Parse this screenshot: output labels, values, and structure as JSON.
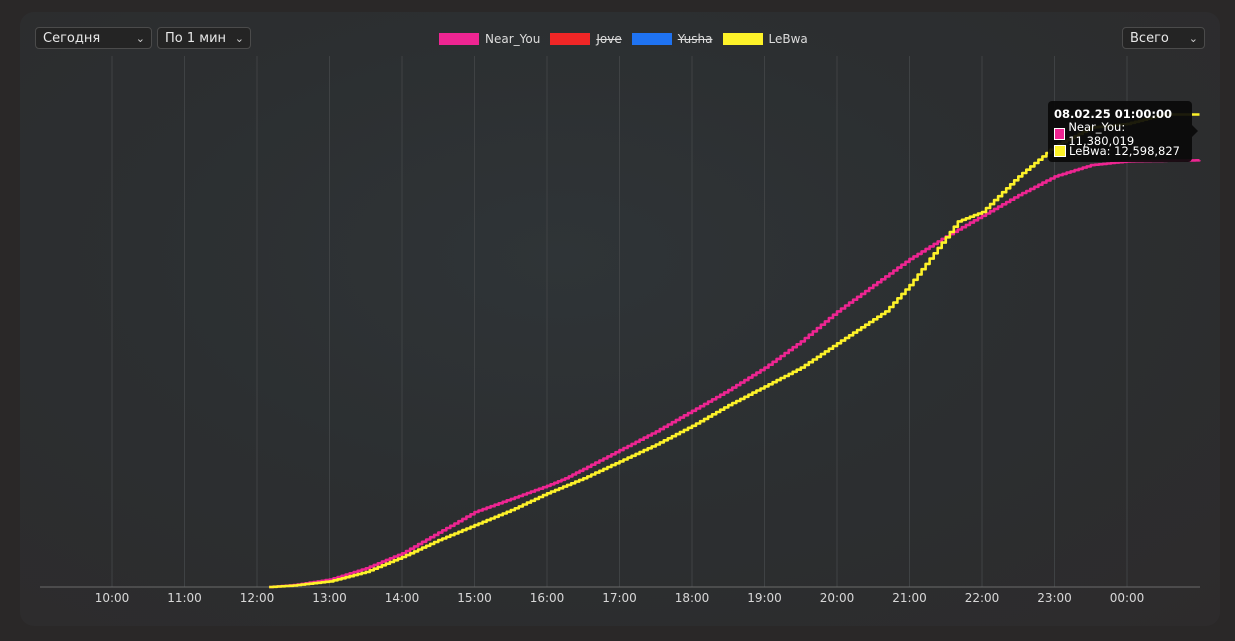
{
  "controls": {
    "period": "Сегодня",
    "interval": "По 1 мин",
    "range": "Всего"
  },
  "colors": {
    "Near_You": "#ee2592",
    "Jove": "#f02626",
    "Yusha": "#1f73f2",
    "LeBwa": "#fdf229"
  },
  "legend": [
    {
      "name": "Near_You",
      "color": "#ee2592",
      "hidden": false
    },
    {
      "name": "Jove",
      "color": "#f02626",
      "hidden": true
    },
    {
      "name": "Yusha",
      "color": "#1f73f2",
      "hidden": true
    },
    {
      "name": "LeBwa",
      "color": "#fdf229",
      "hidden": false
    }
  ],
  "tooltip": {
    "title": "08.02.25 01:00:00",
    "rows": [
      {
        "label": "Near_You: 11,380,019",
        "color": "#ee2592"
      },
      {
        "label": "LeBwa: 12,598,827",
        "color": "#fdf229"
      }
    ]
  },
  "chart_data": {
    "type": "line",
    "x_ticks": [
      "10:00",
      "11:00",
      "12:00",
      "13:00",
      "14:00",
      "15:00",
      "16:00",
      "17:00",
      "18:00",
      "19:00",
      "20:00",
      "21:00",
      "22:00",
      "23:00",
      "00:00"
    ],
    "xlim": [
      "09:00",
      "01:00"
    ],
    "ylim": [
      0,
      12800000
    ],
    "grid": "vertical",
    "legend_position": "top-center",
    "series": [
      {
        "name": "Near_You",
        "points": [
          [
            "12:10",
            0
          ],
          [
            "12:30",
            50000
          ],
          [
            "13:00",
            200000
          ],
          [
            "13:30",
            500000
          ],
          [
            "14:00",
            900000
          ],
          [
            "14:30",
            1450000
          ],
          [
            "15:00",
            2000000
          ],
          [
            "15:30",
            2350000
          ],
          [
            "16:00",
            2700000
          ],
          [
            "16:15",
            2900000
          ],
          [
            "16:30",
            3150000
          ],
          [
            "17:00",
            3650000
          ],
          [
            "17:30",
            4150000
          ],
          [
            "18:00",
            4700000
          ],
          [
            "18:30",
            5250000
          ],
          [
            "19:00",
            5850000
          ],
          [
            "19:30",
            6550000
          ],
          [
            "20:00",
            7350000
          ],
          [
            "20:30",
            8050000
          ],
          [
            "21:00",
            8750000
          ],
          [
            "21:30",
            9350000
          ],
          [
            "22:00",
            9900000
          ],
          [
            "22:30",
            10450000
          ],
          [
            "23:00",
            10950000
          ],
          [
            "23:30",
            11250000
          ],
          [
            "00:00",
            11350000
          ],
          [
            "01:00",
            11380019
          ]
        ]
      },
      {
        "name": "LeBwa",
        "points": [
          [
            "12:10",
            0
          ],
          [
            "12:30",
            40000
          ],
          [
            "13:00",
            150000
          ],
          [
            "13:30",
            400000
          ],
          [
            "14:00",
            800000
          ],
          [
            "14:30",
            1250000
          ],
          [
            "15:00",
            1650000
          ],
          [
            "15:30",
            2050000
          ],
          [
            "16:00",
            2500000
          ],
          [
            "16:30",
            2900000
          ],
          [
            "17:00",
            3350000
          ],
          [
            "17:30",
            3800000
          ],
          [
            "18:00",
            4300000
          ],
          [
            "18:30",
            4850000
          ],
          [
            "19:00",
            5350000
          ],
          [
            "19:30",
            5850000
          ],
          [
            "20:00",
            6500000
          ],
          [
            "20:40",
            7350000
          ],
          [
            "21:00",
            8050000
          ],
          [
            "21:40",
            9750000
          ],
          [
            "22:00",
            10000000
          ],
          [
            "22:30",
            10950000
          ],
          [
            "23:00",
            11750000
          ],
          [
            "23:30",
            12250000
          ],
          [
            "00:00",
            12350000
          ],
          [
            "00:30",
            12598827
          ],
          [
            "01:00",
            12598827
          ]
        ]
      }
    ]
  }
}
